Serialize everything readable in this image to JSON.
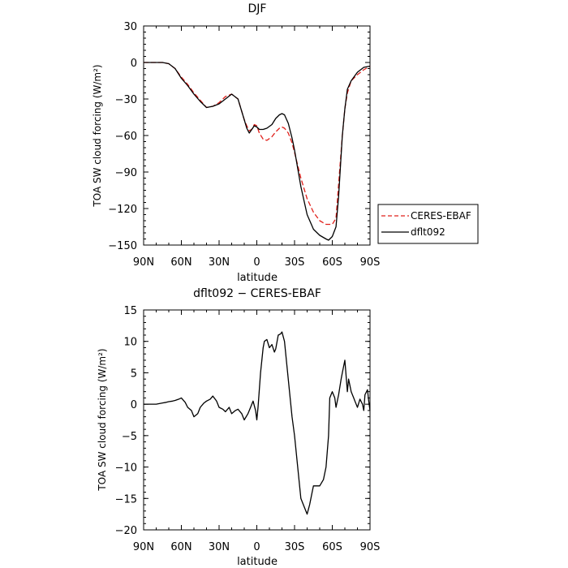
{
  "chart_data": [
    {
      "type": "line",
      "title": "DJF",
      "xlabel": "latitude",
      "ylabel": "TOA SW cloud forcing (W/m²)",
      "x_unit": "degrees latitude (negative = south)",
      "xlim": [
        90,
        -90
      ],
      "ylim": [
        -150,
        30
      ],
      "xticks": [
        90,
        60,
        30,
        0,
        -30,
        -60,
        -90
      ],
      "xtick_labels": [
        "90N",
        "60N",
        "30N",
        "0",
        "30S",
        "60S",
        "90S"
      ],
      "yticks": [
        30,
        0,
        -30,
        -60,
        -90,
        -120,
        -150
      ],
      "ytick_labels": [
        "30",
        "0",
        "−30",
        "−60",
        "−90",
        "−120",
        "−150"
      ],
      "legend_position": "outside right",
      "series": [
        {
          "name": "CERES-EBAF",
          "color": "#e0201b",
          "dash": "dashed",
          "x": [
            90,
            80,
            75,
            70,
            65,
            60,
            55,
            50,
            45,
            40,
            35,
            30,
            25,
            20,
            15,
            10,
            8,
            6,
            4,
            2,
            0,
            -2,
            -5,
            -8,
            -12,
            -15,
            -18,
            -20,
            -22,
            -25,
            -28,
            -30,
            -35,
            -40,
            -45,
            -50,
            -55,
            -60,
            -63,
            -65,
            -68,
            -70,
            -72,
            -75,
            -80,
            -85,
            -90
          ],
          "values": [
            0,
            0,
            0,
            -1,
            -5,
            -12,
            -18,
            -25,
            -31,
            -37,
            -36,
            -33,
            -28,
            -26,
            -30,
            -47,
            -52,
            -56,
            -55,
            -51,
            -52,
            -58,
            -63,
            -64,
            -61,
            -57,
            -54,
            -53,
            -54,
            -58,
            -66,
            -74,
            -95,
            -112,
            -123,
            -130,
            -133,
            -133,
            -128,
            -100,
            -60,
            -38,
            -25,
            -15,
            -10,
            -6,
            -3
          ]
        },
        {
          "name": "dflt092",
          "color": "#000000",
          "dash": "solid",
          "x": [
            90,
            80,
            75,
            70,
            65,
            60,
            55,
            50,
            45,
            40,
            35,
            30,
            25,
            20,
            15,
            10,
            8,
            6,
            4,
            2,
            0,
            -2,
            -5,
            -8,
            -12,
            -15,
            -18,
            -20,
            -22,
            -25,
            -28,
            -30,
            -35,
            -40,
            -45,
            -50,
            -55,
            -57,
            -60,
            -63,
            -65,
            -68,
            -70,
            -72,
            -75,
            -80,
            -85,
            -90
          ],
          "values": [
            0,
            0,
            0,
            -1,
            -5,
            -13,
            -19,
            -26,
            -32,
            -37,
            -36,
            -34,
            -30,
            -26,
            -30,
            -47,
            -54,
            -58,
            -55,
            -52,
            -53,
            -55,
            -55,
            -54,
            -51,
            -46,
            -43,
            -42,
            -43,
            -50,
            -62,
            -72,
            -102,
            -125,
            -137,
            -142,
            -145,
            -146,
            -143,
            -135,
            -110,
            -60,
            -38,
            -22,
            -15,
            -8,
            -4,
            -3
          ]
        }
      ]
    },
    {
      "type": "line",
      "title": "dflt092 − CERES-EBAF",
      "xlabel": "latitude",
      "ylabel": "TOA SW cloud forcing (W/m²)",
      "x_unit": "degrees latitude (negative = south)",
      "xlim": [
        90,
        -90
      ],
      "ylim": [
        -20,
        15
      ],
      "xticks": [
        90,
        60,
        30,
        0,
        -30,
        -60,
        -90
      ],
      "xtick_labels": [
        "90N",
        "60N",
        "30N",
        "0",
        "30S",
        "60S",
        "90S"
      ],
      "yticks": [
        15,
        10,
        5,
        0,
        -5,
        -10,
        -15,
        -20
      ],
      "ytick_labels": [
        "15",
        "10",
        "5",
        "0",
        "−5",
        "−10",
        "−15",
        "−20"
      ],
      "series": [
        {
          "name": "",
          "color": "#000000",
          "dash": "solid",
          "x": [
            90,
            85,
            80,
            75,
            72,
            70,
            67,
            65,
            62,
            60,
            57,
            55,
            52,
            50,
            47,
            45,
            42,
            40,
            37,
            35,
            32,
            30,
            27,
            25,
            22,
            20,
            17,
            15,
            12,
            10,
            7,
            5,
            3,
            1,
            0,
            -1,
            -3,
            -5,
            -6,
            -8,
            -10,
            -12,
            -14,
            -15,
            -17,
            -19,
            -20,
            -22,
            -24,
            -26,
            -28,
            -30,
            -32,
            -35,
            -38,
            -40,
            -42,
            -44,
            -45,
            -47,
            -50,
            -53,
            -55,
            -57,
            -58,
            -60,
            -62,
            -63,
            -65,
            -67,
            -68,
            -70,
            -72,
            -73,
            -74,
            -75,
            -77,
            -78,
            -80,
            -82,
            -84,
            -85,
            -86,
            -88,
            -89,
            -90
          ],
          "values": [
            0,
            0,
            0,
            0.2,
            0.3,
            0.4,
            0.5,
            0.6,
            0.8,
            1.0,
            0.3,
            -0.5,
            -1.0,
            -2.0,
            -1.5,
            -0.5,
            0.2,
            0.5,
            0.8,
            1.3,
            0.5,
            -0.5,
            -0.8,
            -1.2,
            -0.5,
            -1.5,
            -1.0,
            -0.8,
            -1.5,
            -2.5,
            -1.5,
            -0.5,
            0.5,
            -1.0,
            -2.5,
            -0.5,
            5.0,
            9.0,
            10.0,
            10.3,
            9.0,
            9.5,
            8.3,
            8.8,
            11.0,
            11.2,
            11.5,
            10.0,
            6.0,
            2.0,
            -2.0,
            -5.0,
            -9.0,
            -15.0,
            -16.5,
            -17.5,
            -16.0,
            -14.0,
            -13.0,
            -13.0,
            -13.0,
            -12.0,
            -10.0,
            -5.0,
            1.0,
            2.0,
            1.0,
            -0.5,
            1.5,
            4.0,
            5.0,
            7.0,
            2.0,
            4.0,
            3.0,
            2.0,
            1.0,
            0.5,
            -0.5,
            0.8,
            0.0,
            -1.0,
            1.5,
            2.3,
            0.5,
            -1.0
          ]
        }
      ]
    }
  ]
}
